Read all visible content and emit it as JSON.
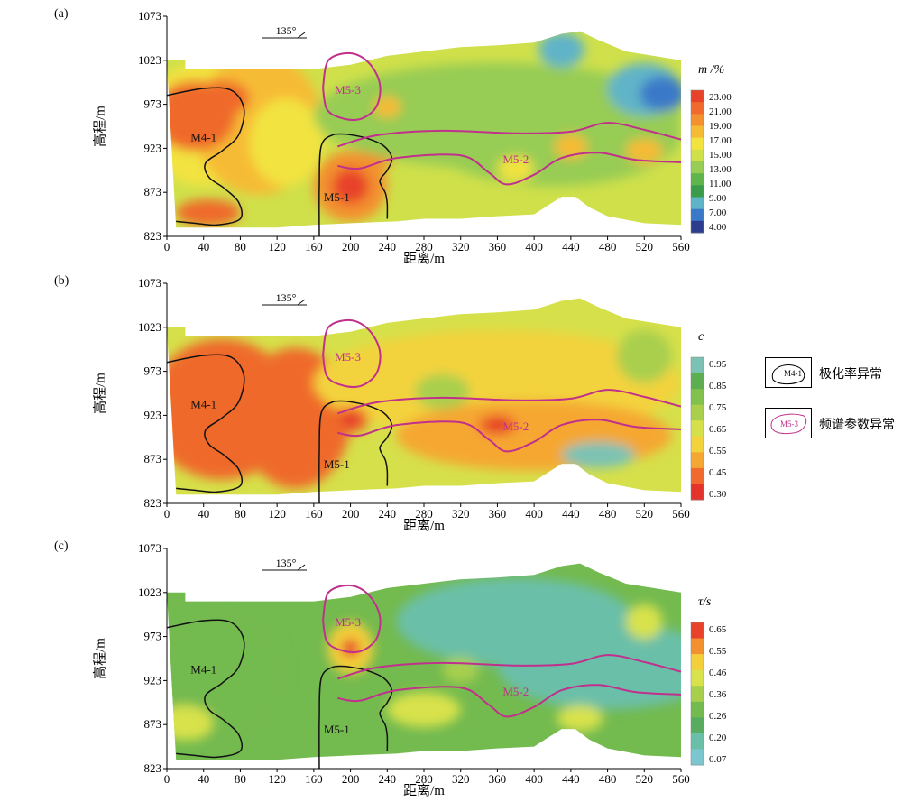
{
  "legend": {
    "items": [
      {
        "symbol_label": "M4-1",
        "label": "极化率异常",
        "color": "#000000"
      },
      {
        "symbol_label": "M5-3",
        "label": "频谱参数异常",
        "color": "#c0308c"
      }
    ]
  },
  "chart_data": [
    {
      "type": "heatmap",
      "panel": "(a)",
      "xlabel": "距离/m",
      "ylabel": "高程/m",
      "direction_label": "135°",
      "xlim": [
        0,
        560
      ],
      "ylim": [
        823,
        1073
      ],
      "x_ticks": [
        0,
        40,
        80,
        120,
        160,
        200,
        240,
        280,
        320,
        360,
        400,
        440,
        480,
        520,
        560
      ],
      "y_ticks": [
        823,
        873,
        923,
        973,
        1023,
        1073
      ],
      "colorbar": {
        "title": "m /%",
        "tick_labels": [
          "23.00",
          "21.00",
          "19.00",
          "17.00",
          "15.00",
          "13.00",
          "11.00",
          "9.00",
          "7.00",
          "4.00"
        ],
        "colors": [
          "#e8432a",
          "#ef6a2c",
          "#f3902f",
          "#f6bb34",
          "#f2e33f",
          "#cfe04a",
          "#97cc55",
          "#5fb54c",
          "#3a9c4a",
          "#60b4c8",
          "#3a79c8",
          "#2d3d8e"
        ]
      },
      "anomaly_labels": [
        "M4-1",
        "M5-1",
        "M5-2",
        "M5-3"
      ]
    },
    {
      "type": "heatmap",
      "panel": "(b)",
      "xlabel": "距离/m",
      "ylabel": "高程/m",
      "direction_label": "135°",
      "xlim": [
        0,
        560
      ],
      "ylim": [
        823,
        1073
      ],
      "x_ticks": [
        0,
        40,
        80,
        120,
        160,
        200,
        240,
        280,
        320,
        360,
        400,
        440,
        480,
        520,
        560
      ],
      "y_ticks": [
        823,
        873,
        923,
        973,
        1023,
        1073
      ],
      "colorbar": {
        "title": "c",
        "tick_labels": [
          "0.95",
          "0.85",
          "0.75",
          "0.65",
          "0.55",
          "0.45",
          "0.30"
        ],
        "colors": [
          "#7cc2b4",
          "#5cae50",
          "#82c14e",
          "#a9cf4d",
          "#d6e04a",
          "#f3d33d",
          "#f5a733",
          "#ef6a2c",
          "#e4332a"
        ]
      },
      "anomaly_labels": [
        "M4-1",
        "M5-1",
        "M5-2",
        "M5-3"
      ]
    },
    {
      "type": "heatmap",
      "panel": "(c)",
      "xlabel": "距离/m",
      "ylabel": "高程/m",
      "direction_label": "135°",
      "xlim": [
        0,
        560
      ],
      "ylim": [
        823,
        1073
      ],
      "x_ticks": [
        0,
        40,
        80,
        120,
        160,
        200,
        240,
        280,
        320,
        360,
        400,
        440,
        480,
        520,
        560
      ],
      "y_ticks": [
        823,
        873,
        923,
        973,
        1023,
        1073
      ],
      "colorbar": {
        "title": "τ/s",
        "tick_labels": [
          "0.65",
          "0.55",
          "0.46",
          "0.36",
          "0.26",
          "0.20",
          "0.07"
        ],
        "colors": [
          "#e8432a",
          "#f3902f",
          "#f3cf3b",
          "#d8e24b",
          "#a7cf4d",
          "#73ba4f",
          "#58ac60",
          "#6abfa8",
          "#7cc6cf"
        ]
      },
      "anomaly_labels": [
        "M4-1",
        "M5-1",
        "M5-2",
        "M5-3"
      ]
    }
  ]
}
